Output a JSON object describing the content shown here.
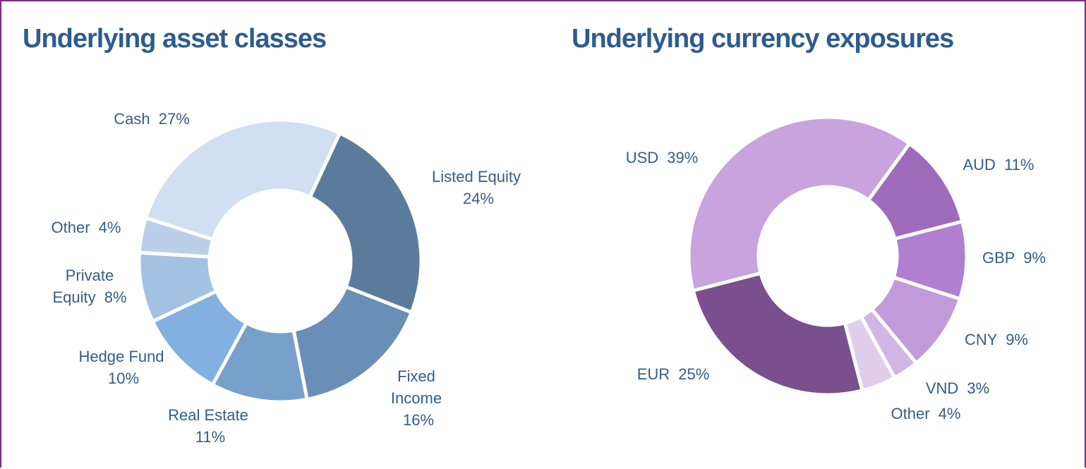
{
  "chart_data": [
    {
      "type": "donut",
      "title": "Underlying asset classes",
      "categories": [
        "Listed Equity",
        "Fixed Income",
        "Real Estate",
        "Hedge Fund",
        "Private Equity",
        "Other",
        "Cash"
      ],
      "values": [
        24,
        16,
        11,
        10,
        8,
        4,
        27
      ],
      "value_labels": [
        "24%",
        "16%",
        "11%",
        "10%",
        "8%",
        "4%",
        "27%"
      ],
      "colors": [
        "#5a7b9c",
        "#6a8fb7",
        "#77a0ca",
        "#82b0e0",
        "#a3c1e3",
        "#bccfea",
        "#d0dff1"
      ]
    },
    {
      "type": "donut",
      "title": "Underlying currency exposures",
      "categories": [
        "AUD",
        "GBP",
        "CNY",
        "VND",
        "Other",
        "EUR",
        "USD"
      ],
      "values": [
        11,
        9,
        9,
        3,
        4,
        25,
        39
      ],
      "value_labels": [
        "11%",
        "9%",
        "9%",
        "3%",
        "4%",
        "25%",
        "39%"
      ],
      "colors": [
        "#9e6bbb",
        "#b07fd0",
        "#c19bd9",
        "#d3b5e5",
        "#e0cdeb",
        "#7a4f8e",
        "#c8a3dd"
      ]
    }
  ]
}
